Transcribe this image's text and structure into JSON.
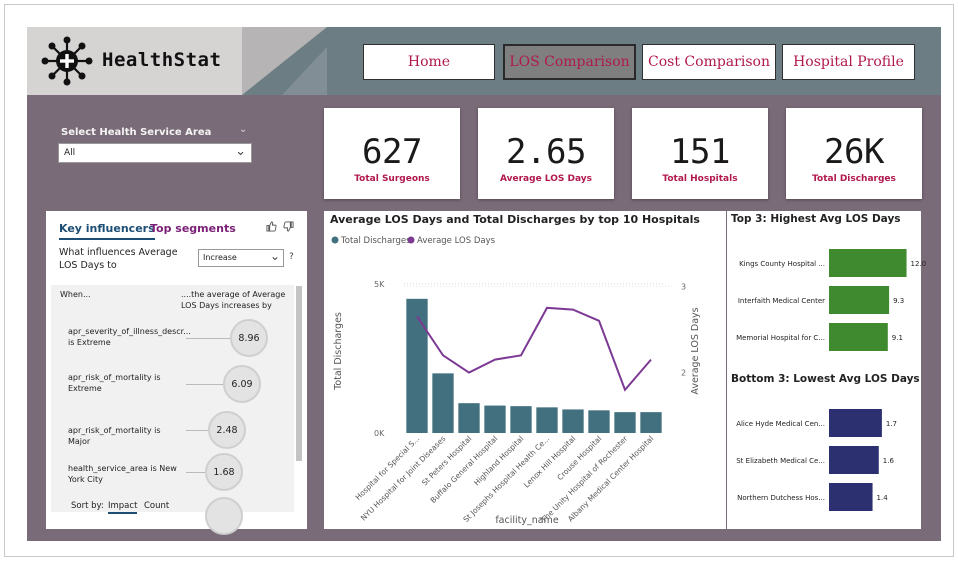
{
  "app": {
    "logo_text": "HealthStat"
  },
  "nav": {
    "home": "Home",
    "los_comparison": "LOS Comparison",
    "cost_comparison": "Cost Comparison",
    "hospital_profile": "Hospital Profile"
  },
  "slicer": {
    "label": "Select Health Service Area",
    "value": "All"
  },
  "kpis": [
    {
      "value": "627",
      "label": "Total Surgeons"
    },
    {
      "value": "2.65",
      "label": "Average LOS Days"
    },
    {
      "value": "151",
      "label": "Total Hospitals"
    },
    {
      "value": "26K",
      "label": "Total Discharges"
    }
  ],
  "key_influencers": {
    "tab_key": "Key influencers",
    "tab_segments": "Top segments",
    "question": "What influences Average LOS Days to",
    "select_value": "Increase",
    "help": "?",
    "when_label": "When...",
    "then_label": "....the average of Average LOS Days increases by",
    "rows": [
      {
        "text": "apr_severity_of_illness_descr... is Extreme",
        "value": "8.96"
      },
      {
        "text": "apr_risk_of_mortality is Extreme",
        "value": "6.09"
      },
      {
        "text": "apr_risk_of_mortality is Major",
        "value": "2.48"
      },
      {
        "text": "health_service_area is New York City",
        "value": "1.68"
      }
    ],
    "sort_by": "Sort by:",
    "sort_impact": "Impact",
    "sort_count": "Count"
  },
  "chart_data": [
    {
      "type": "bar",
      "title": "Average LOS Days and Total Discharges by top 10 Hospitals",
      "xlabel": "facility_name",
      "ylabel": "Total Discharges",
      "y2label": "Average LOS Days",
      "legend_position": "top-left",
      "categories": [
        "Hospital for Special S...",
        "NYU Hospital for Joint Diseases",
        "St Peters Hospital",
        "Buffalo General Hospital",
        "Highland Hospital",
        "St Josephs Hospital Health Ce...",
        "Lenox Hill Hospital",
        "Crouse Hospital",
        "The Unity Hospital of Rochester",
        "Albany Medical Center Hospital"
      ],
      "series": [
        {
          "name": "Total Discharges",
          "type": "bar",
          "axis": "left",
          "color": "#42707f",
          "values": [
            4500,
            2000,
            1000,
            920,
            900,
            860,
            790,
            760,
            700,
            700
          ]
        },
        {
          "name": "Average LOS Days",
          "type": "line",
          "axis": "right",
          "color": "#7d3a94",
          "values": [
            2.65,
            2.2,
            2.0,
            2.15,
            2.2,
            2.75,
            2.73,
            2.6,
            1.8,
            2.15
          ]
        }
      ],
      "y_ticks": [
        "5K",
        "0K"
      ],
      "ylim": [
        0,
        5500
      ],
      "y2_ticks": [
        "3",
        "2"
      ],
      "y2lim": [
        1.3,
        3.2
      ],
      "grid": true
    },
    {
      "type": "bar",
      "orientation": "horizontal",
      "title": "Top 3: Highest Avg LOS Days",
      "color": "#3f8a2e",
      "categories": [
        "Kings County Hospital ...",
        "Interfaith Medical Center",
        "Memorial Hospital for C..."
      ],
      "values": [
        12.0,
        9.3,
        9.1
      ],
      "value_labels": [
        "12.0",
        "9.3",
        "9.1"
      ],
      "xlim": [
        0,
        13
      ]
    },
    {
      "type": "bar",
      "orientation": "horizontal",
      "title": "Bottom 3: Lowest Avg LOS Days",
      "color": "#2c2f70",
      "categories": [
        "Alice Hyde Medical Cen...",
        "St Elizabeth Medical Ce...",
        "Northern Dutchess Hos..."
      ],
      "values": [
        1.7,
        1.6,
        1.4
      ],
      "value_labels": [
        "1.7",
        "1.6",
        "1.4"
      ],
      "xlim": [
        0,
        2.7
      ]
    }
  ]
}
